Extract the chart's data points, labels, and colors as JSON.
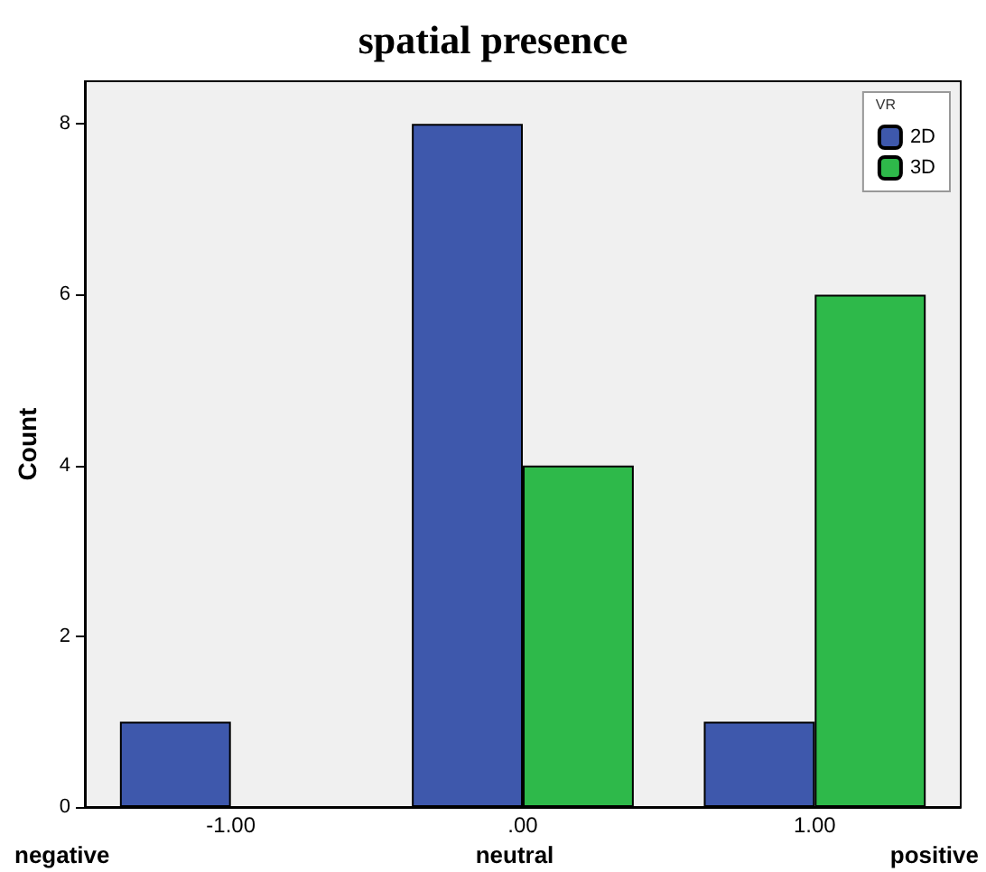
{
  "chart_data": {
    "type": "bar",
    "title": "spatial presence",
    "ylabel": "Count",
    "legend_title": "VR",
    "categories": [
      "-1.00",
      ".00",
      "1.00"
    ],
    "series": [
      {
        "name": "2D",
        "color": "#3e58ac",
        "values": [
          1,
          8,
          1
        ]
      },
      {
        "name": "3D",
        "color": "#2eb94a",
        "values": [
          null,
          4,
          6
        ]
      }
    ],
    "ylim": [
      0,
      8.5
    ],
    "yticks": [
      0,
      2,
      4,
      6,
      8
    ],
    "grid": false,
    "legend": "top right",
    "annotations": [
      "negative",
      "neutral",
      "positive"
    ]
  }
}
